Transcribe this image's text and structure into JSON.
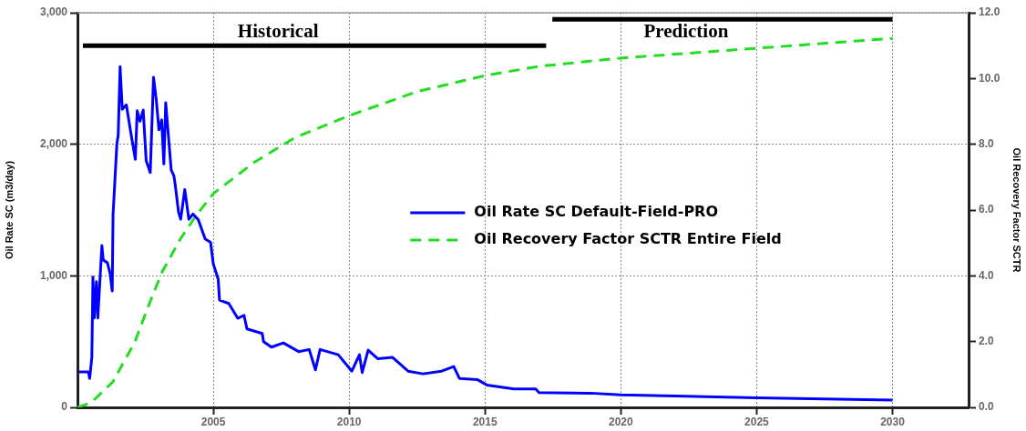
{
  "chart_data": {
    "type": "line",
    "ylabel": "Oil Rate SC (m3/day)",
    "y2label": "Oil Recovery Factor SCTR",
    "xlim": [
      2000,
      2032.8
    ],
    "xticks": [
      2005,
      2010,
      2015,
      2020,
      2025,
      2030
    ],
    "ylim": [
      0,
      3000
    ],
    "yticks": [
      {
        "value": 0,
        "label": "0"
      },
      {
        "value": 1000,
        "label": "1,000"
      },
      {
        "value": 2000,
        "label": "2,000"
      },
      {
        "value": 3000,
        "label": "3,000"
      }
    ],
    "y2lim": [
      0,
      12
    ],
    "y2ticks": [
      {
        "value": 0,
        "label": "0.0"
      },
      {
        "value": 2,
        "label": "2.0"
      },
      {
        "value": 4,
        "label": "4.0"
      },
      {
        "value": 6,
        "label": "6.0"
      },
      {
        "value": 8,
        "label": "8.0"
      },
      {
        "value": 10,
        "label": "10.0"
      },
      {
        "value": 12,
        "label": "12.0"
      }
    ],
    "grid": true,
    "legend": "center",
    "marker": "none",
    "annotations": [
      "Historical",
      "Prediction"
    ],
    "series": [
      {
        "name": "Oil Rate SC Default-Field-PRO",
        "color": "#0000ff",
        "line_style": "solid",
        "x": [
          2000.05,
          2000.4,
          2000.45,
          2000.53,
          2000.57,
          2000.62,
          2000.7,
          2000.75,
          2000.9,
          2000.95,
          2001.1,
          2001.2,
          2001.28,
          2001.31,
          2001.45,
          2001.5,
          2001.57,
          2001.65,
          2001.8,
          2001.97,
          2002.13,
          2002.2,
          2002.3,
          2002.42,
          2002.53,
          2002.68,
          2002.8,
          2002.9,
          2003.0,
          2003.1,
          2003.18,
          2003.25,
          2003.33,
          2003.45,
          2003.55,
          2003.6,
          2003.72,
          2003.8,
          2003.95,
          2004.1,
          2004.25,
          2004.45,
          2004.7,
          2004.9,
          2005.0,
          2005.18,
          2005.23,
          2005.57,
          2005.9,
          2006.13,
          2006.24,
          2006.8,
          2006.85,
          2007.14,
          2007.58,
          2008.14,
          2008.53,
          2008.76,
          2008.93,
          2009.6,
          2010.1,
          2010.38,
          2010.48,
          2010.7,
          2011.05,
          2011.6,
          2012.17,
          2012.72,
          2013.4,
          2013.85,
          2014.06,
          2014.73,
          2015.07,
          2016.07,
          2016.87,
          2016.98,
          2018.88,
          2020,
          2025,
          2030
        ],
        "values": [
          270,
          270,
          220,
          380,
          990,
          680,
          955,
          680,
          1230,
          1120,
          1100,
          1020,
          885,
          1460,
          2000,
          2070,
          2590,
          2265,
          2300,
          2080,
          1885,
          2255,
          2175,
          2260,
          1875,
          1785,
          2510,
          2340,
          2110,
          2185,
          1850,
          2315,
          2110,
          1805,
          1760,
          1690,
          1485,
          1430,
          1655,
          1430,
          1470,
          1425,
          1280,
          1255,
          1090,
          975,
          815,
          790,
          677,
          700,
          596,
          562,
          500,
          458,
          490,
          424,
          440,
          285,
          440,
          400,
          275,
          400,
          265,
          435,
          370,
          380,
          275,
          255,
          275,
          310,
          220,
          210,
          170,
          140,
          140,
          113,
          108,
          95,
          72,
          55
        ]
      },
      {
        "name": "Oil Recovery Factor SCTR Entire Field",
        "color": "#22dd22",
        "axis": "y2",
        "line_style": "dashed",
        "x": [
          2000.0,
          2000.5,
          2001.3,
          2002.1,
          2002.66,
          2003.1,
          2003.78,
          2004.34,
          2005.0,
          2006.52,
          2008,
          2010,
          2012.5,
          2015,
          2017,
          2020,
          2025,
          2030
        ],
        "values": [
          0,
          0.14,
          0.77,
          1.97,
          3.18,
          4.09,
          5.11,
          5.8,
          6.5,
          7.46,
          8.2,
          8.87,
          9.6,
          10.09,
          10.37,
          10.62,
          10.92,
          11.22
        ]
      },
      {
        "color": "#000000",
        "line_style": "solid",
        "x": [
          2000.2,
          2017.25
        ],
        "values": [
          2750,
          2750
        ]
      },
      {
        "color": "#000000",
        "line_style": "solid",
        "x": [
          2017.48,
          2030
        ],
        "values": [
          2950,
          2950
        ]
      }
    ]
  }
}
